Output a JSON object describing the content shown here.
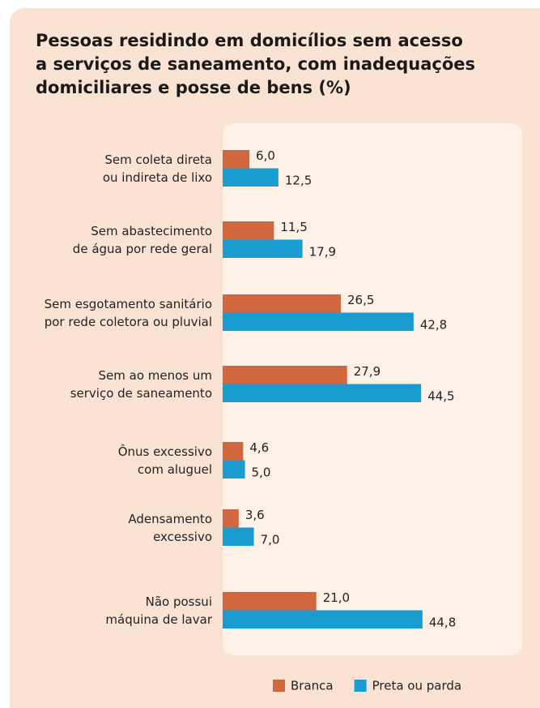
{
  "chart_data": {
    "type": "bar",
    "orientation": "horizontal",
    "title": "Pessoas residindo em domicílios sem acesso\na serviços de saneamento, com inadequações\ndomiciliares e posse de bens (%)",
    "categories": [
      "Sem coleta direta\nou indireta de lixo",
      "Sem abastecimento\nde água por rede geral",
      "Sem esgotamento sanitário\npor rede coletora ou pluvial",
      "Sem ao menos um\nserviço de saneamento",
      "Ônus excessivo\ncom aluguel",
      "Adensamento\nexcessivo",
      "Não possui\nmáquina de lavar"
    ],
    "series": [
      {
        "name": "Branca",
        "color": "#d0673f",
        "values": [
          6.0,
          11.5,
          26.5,
          27.9,
          4.6,
          3.6,
          21.0
        ],
        "value_labels": [
          "6,0",
          "11,5",
          "26,5",
          "27,9",
          "4,6",
          "3,6",
          "21,0"
        ]
      },
      {
        "name": "Preta ou parda",
        "color": "#1a9cd1",
        "values": [
          12.5,
          17.9,
          42.8,
          44.5,
          5.0,
          7.0,
          44.8
        ],
        "value_labels": [
          "12,5",
          "17,9",
          "42,8",
          "44,5",
          "5,0",
          "7,0",
          "44,8"
        ]
      }
    ],
    "xlim": [
      0,
      50
    ],
    "legend": "bottom-right"
  }
}
